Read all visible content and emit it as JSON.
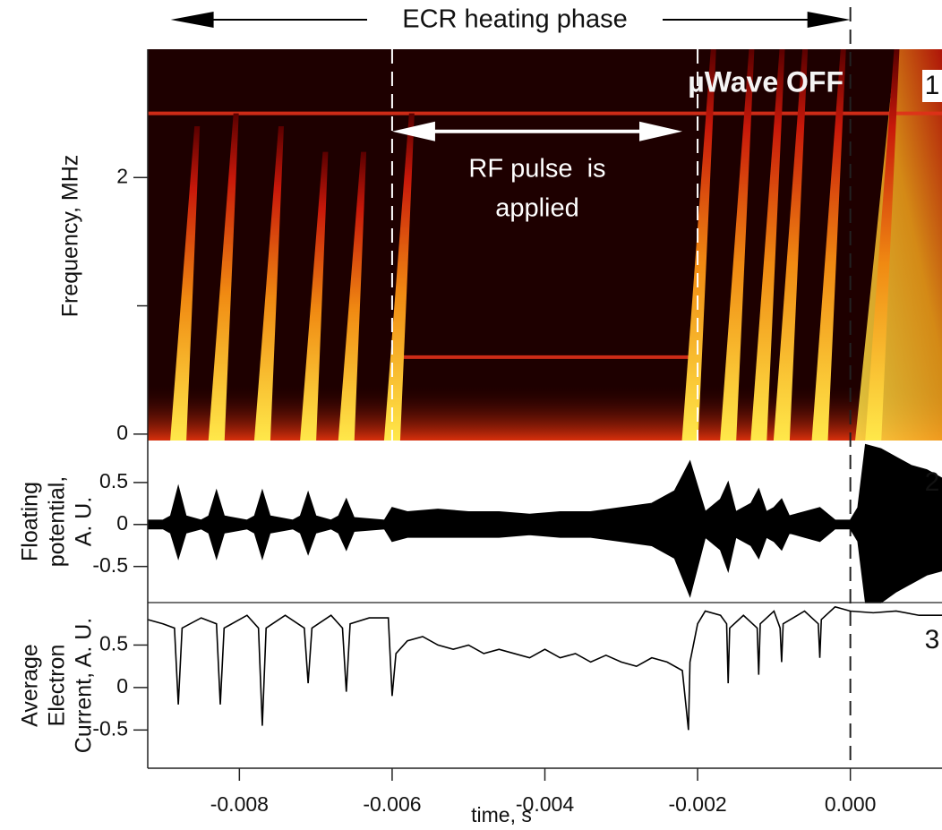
{
  "chart_data": [
    {
      "type": "spectrogram",
      "ylabel": "Frequency, MHz",
      "xlim": [
        -0.0092,
        0.0012
      ],
      "ylim": [
        -0.05,
        3
      ],
      "yticks": [
        0,
        2
      ],
      "minor_yticks": [
        1
      ],
      "bursts": {
        "x": [
          -0.0088,
          -0.0083,
          -0.0077,
          -0.0071,
          -0.0066,
          -0.006,
          -0.0021,
          -0.0016,
          -0.0012,
          -0.0009,
          -0.0004,
          0.0003
        ],
        "values": [
          2.4,
          2.5,
          2.4,
          2.2,
          2.2,
          2.5,
          3,
          3,
          3,
          3,
          3,
          3
        ]
      },
      "lines": [
        {
          "freq": 2.5,
          "from": -0.0092,
          "to": 0.0012
        },
        {
          "freq": 0.6,
          "from": -0.006,
          "to": -0.0021
        }
      ],
      "markers": [
        -0.006,
        -0.002,
        0
      ],
      "annotations": {
        "ecr": {
          "text": "ECR heating phase",
          "span": [
            -0.0089,
            0
          ]
        },
        "uwave": "µWave OFF",
        "rf": {
          "lines": [
            "RF pulse  is",
            "applied"
          ],
          "span": [
            -0.006,
            -0.0022
          ],
          "freq": 2.36
        },
        "panel": "1"
      }
    },
    {
      "type": "envelope",
      "ylabel": [
        "Floating",
        "potential,",
        "A. U."
      ],
      "xlim": [
        -0.0092,
        0.0012
      ],
      "ylim": [
        -0.93,
        1
      ],
      "yticks": [
        0.5,
        0,
        -0.5
      ],
      "panel": "2",
      "x": [
        -0.0092,
        -0.009,
        -0.0089,
        -0.0088,
        -0.0087,
        -0.0085,
        -0.0084,
        -0.0083,
        -0.0082,
        -0.0079,
        -0.0078,
        -0.0077,
        -0.0076,
        -0.0073,
        -0.0072,
        -0.0071,
        -0.007,
        -0.0068,
        -0.0067,
        -0.0066,
        -0.0065,
        -0.0061,
        -0.006,
        -0.0058,
        -0.0054,
        -0.005,
        -0.0046,
        -0.0042,
        -0.0038,
        -0.0034,
        -0.003,
        -0.0026,
        -0.0023,
        -0.0021,
        -0.0019,
        -0.0017,
        -0.0016,
        -0.0015,
        -0.0013,
        -0.0012,
        -0.0011,
        -0.001,
        -0.0009,
        -0.0008,
        -0.0006,
        -0.0004,
        -0.0002,
        0,
        0.0001,
        0.0002,
        0.0004,
        0.0006,
        0.0008,
        0.001,
        0.0012
      ],
      "upper": [
        0.05,
        0.05,
        0.1,
        0.45,
        0.1,
        0.05,
        0.1,
        0.4,
        0.1,
        0.05,
        0.1,
        0.4,
        0.1,
        0.05,
        0.1,
        0.38,
        0.1,
        0.05,
        0.1,
        0.3,
        0.08,
        0.05,
        0.2,
        0.15,
        0.18,
        0.15,
        0.15,
        0.12,
        0.15,
        0.15,
        0.2,
        0.25,
        0.4,
        0.75,
        0.15,
        0.3,
        0.5,
        0.15,
        0.25,
        0.42,
        0.15,
        0.2,
        0.3,
        0.1,
        0.15,
        0.2,
        0.05,
        0.05,
        0.2,
        0.95,
        0.9,
        0.8,
        0.7,
        0.65,
        0.55
      ],
      "lower": [
        -0.05,
        -0.05,
        -0.1,
        -0.4,
        -0.1,
        -0.05,
        -0.1,
        -0.4,
        -0.1,
        -0.05,
        -0.1,
        -0.4,
        -0.1,
        -0.05,
        -0.1,
        -0.35,
        -0.1,
        -0.05,
        -0.1,
        -0.3,
        -0.08,
        -0.05,
        -0.2,
        -0.15,
        -0.15,
        -0.15,
        -0.15,
        -0.12,
        -0.15,
        -0.15,
        -0.2,
        -0.25,
        -0.4,
        -0.85,
        -0.15,
        -0.3,
        -0.55,
        -0.15,
        -0.25,
        -0.4,
        -0.15,
        -0.2,
        -0.3,
        -0.1,
        -0.15,
        -0.2,
        -0.05,
        -0.05,
        -0.2,
        -0.93,
        -0.93,
        -0.8,
        -0.7,
        -0.6,
        -0.55
      ]
    },
    {
      "type": "line",
      "ylabel": [
        "Average",
        "Electron",
        "Current, A. U."
      ],
      "xlabel": "time, s",
      "xlim": [
        -0.0092,
        0.0012
      ],
      "ylim": [
        -0.95,
        1
      ],
      "yticks": [
        0.5,
        0,
        -0.5
      ],
      "xticks": [
        -0.008,
        -0.006,
        -0.004,
        -0.002,
        {
          "value": 0,
          "label": "0.000"
        }
      ],
      "panel": "3",
      "x": [
        -0.0092,
        -0.009,
        -0.00885,
        -0.0088,
        -0.00875,
        -0.0085,
        -0.0083,
        -0.00825,
        -0.0082,
        -0.0079,
        -0.00775,
        -0.0077,
        -0.00765,
        -0.0074,
        -0.00715,
        -0.0071,
        -0.00705,
        -0.0068,
        -0.00665,
        -0.0066,
        -0.00655,
        -0.0063,
        -0.00605,
        -0.006,
        -0.00595,
        -0.0058,
        -0.0056,
        -0.0054,
        -0.0052,
        -0.005,
        -0.0048,
        -0.0046,
        -0.0044,
        -0.0042,
        -0.004,
        -0.0038,
        -0.0036,
        -0.0034,
        -0.0032,
        -0.003,
        -0.0028,
        -0.0026,
        -0.0024,
        -0.0022,
        -0.00212,
        -0.0021,
        -0.002,
        -0.0019,
        -0.0017,
        -0.00162,
        -0.0016,
        -0.00158,
        -0.0014,
        -0.00122,
        -0.0012,
        -0.00118,
        -0.001,
        -0.00092,
        -0.0009,
        -0.00088,
        -0.0006,
        -0.00042,
        -0.0004,
        -0.00038,
        -0.0002,
        0,
        0.0003,
        0.0006,
        0.0009,
        0.0012
      ],
      "values": [
        0.8,
        0.75,
        0.7,
        -0.2,
        0.7,
        0.82,
        0.75,
        -0.2,
        0.7,
        0.85,
        0.7,
        -0.45,
        0.7,
        0.85,
        0.7,
        0.05,
        0.7,
        0.85,
        0.7,
        -0.05,
        0.75,
        0.82,
        0.82,
        -0.1,
        0.4,
        0.55,
        0.6,
        0.5,
        0.45,
        0.5,
        0.4,
        0.45,
        0.4,
        0.35,
        0.45,
        0.35,
        0.4,
        0.3,
        0.38,
        0.3,
        0.25,
        0.35,
        0.3,
        0.2,
        -0.5,
        0.3,
        0.75,
        0.9,
        0.85,
        0.75,
        0.05,
        0.7,
        0.85,
        0.7,
        0.15,
        0.75,
        0.9,
        0.7,
        0.3,
        0.75,
        0.9,
        0.75,
        0.35,
        0.8,
        0.95,
        0.9,
        0.88,
        0.9,
        0.85,
        0.85
      ],
      "color": "#000000"
    }
  ]
}
